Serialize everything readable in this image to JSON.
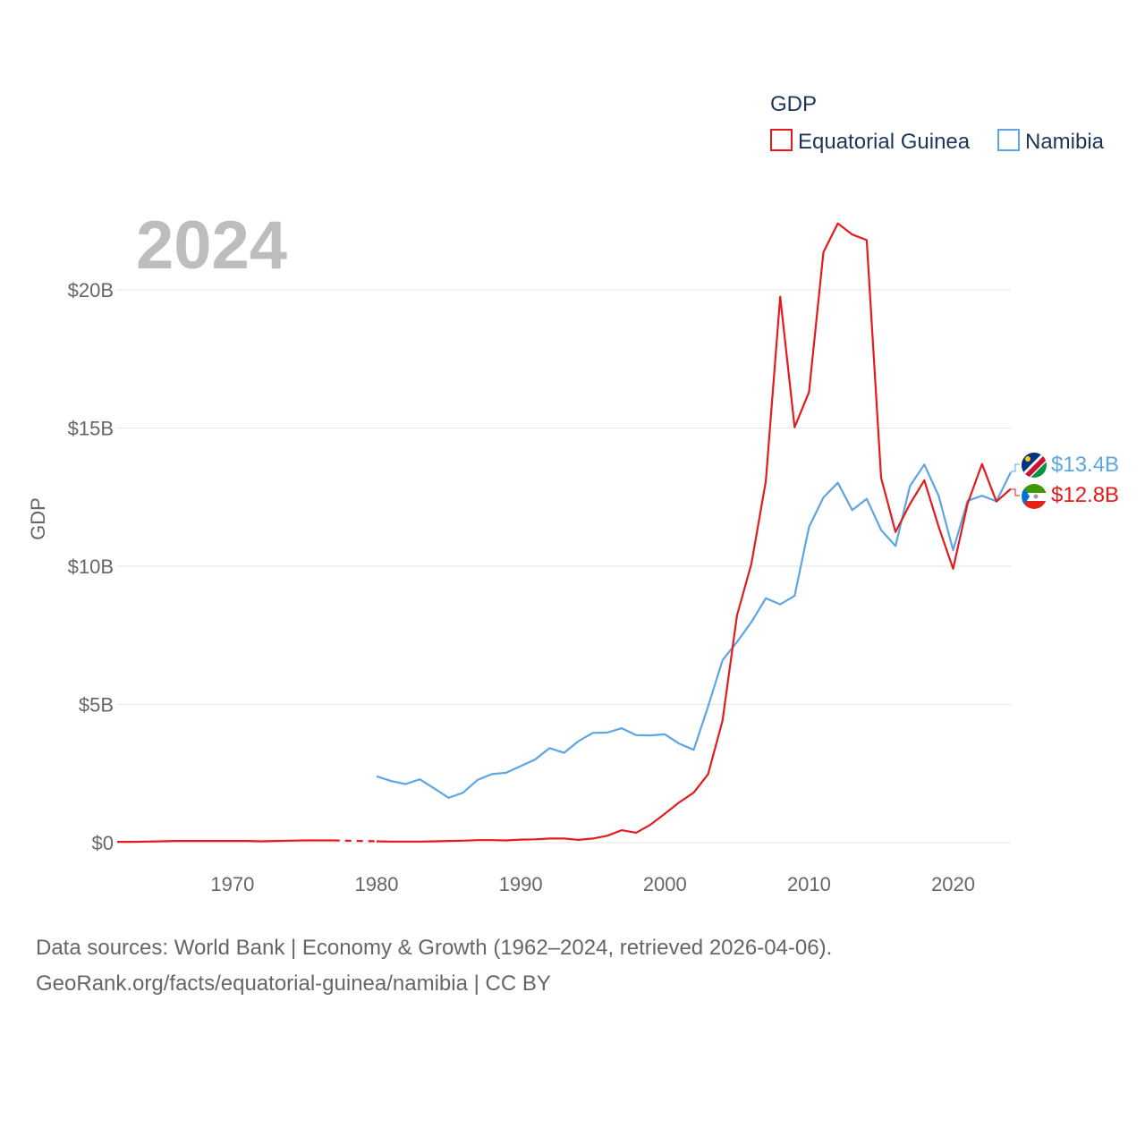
{
  "chart_data": {
    "type": "line",
    "title": "",
    "current_year": "2024",
    "ylabel": "GDP",
    "xlabel": "",
    "xlim": [
      1962,
      2024
    ],
    "ylim": [
      0,
      22500000000
    ],
    "x_ticks": [
      1970,
      1980,
      1990,
      2000,
      2010,
      2020
    ],
    "x_tick_labels": [
      "1970",
      "1980",
      "1990",
      "2000",
      "2010",
      "2020"
    ],
    "y_ticks": [
      0,
      5000000000,
      10000000000,
      15000000000,
      20000000000
    ],
    "y_tick_labels": [
      "$0",
      "$5B",
      "$10B",
      "$15B",
      "$20B"
    ],
    "legend": {
      "title": "GDP",
      "placement": "top-right",
      "entries": [
        "Equatorial Guinea",
        "Namibia"
      ]
    },
    "series": [
      {
        "name": "Equatorial Guinea",
        "color": "#e41a1c",
        "end_label": "$12.8B",
        "flag": "equatorial-guinea-flag-icon",
        "gap": [
          1977,
          1980
        ],
        "points": [
          [
            1962,
            0.03
          ],
          [
            1963,
            0.03
          ],
          [
            1964,
            0.04
          ],
          [
            1965,
            0.05
          ],
          [
            1966,
            0.06
          ],
          [
            1967,
            0.06
          ],
          [
            1968,
            0.06
          ],
          [
            1969,
            0.06
          ],
          [
            1970,
            0.06
          ],
          [
            1971,
            0.06
          ],
          [
            1972,
            0.05
          ],
          [
            1973,
            0.06
          ],
          [
            1974,
            0.07
          ],
          [
            1975,
            0.08
          ],
          [
            1976,
            0.08
          ],
          [
            1977,
            0.08
          ],
          [
            1980,
            0.05
          ],
          [
            1981,
            0.04
          ],
          [
            1982,
            0.04
          ],
          [
            1983,
            0.04
          ],
          [
            1984,
            0.05
          ],
          [
            1985,
            0.06
          ],
          [
            1986,
            0.07
          ],
          [
            1987,
            0.09
          ],
          [
            1988,
            0.09
          ],
          [
            1989,
            0.08
          ],
          [
            1990,
            0.11
          ],
          [
            1991,
            0.12
          ],
          [
            1992,
            0.15
          ],
          [
            1993,
            0.15
          ],
          [
            1994,
            0.1
          ],
          [
            1995,
            0.15
          ],
          [
            1996,
            0.25
          ],
          [
            1997,
            0.45
          ],
          [
            1998,
            0.36
          ],
          [
            1999,
            0.65
          ],
          [
            2000,
            1.05
          ],
          [
            2001,
            1.46
          ],
          [
            2002,
            1.81
          ],
          [
            2003,
            2.48
          ],
          [
            2004,
            4.41
          ],
          [
            2005,
            8.22
          ],
          [
            2006,
            10.09
          ],
          [
            2007,
            13.07
          ],
          [
            2008,
            19.75
          ],
          [
            2009,
            15.03
          ],
          [
            2010,
            16.3
          ],
          [
            2011,
            21.36
          ],
          [
            2012,
            22.4
          ],
          [
            2013,
            22.0
          ],
          [
            2014,
            21.8
          ],
          [
            2015,
            13.2
          ],
          [
            2016,
            11.24
          ],
          [
            2017,
            12.25
          ],
          [
            2018,
            13.11
          ],
          [
            2019,
            11.42
          ],
          [
            2020,
            9.91
          ],
          [
            2021,
            12.27
          ],
          [
            2022,
            13.7
          ],
          [
            2023,
            12.34
          ],
          [
            2024,
            12.8
          ]
        ]
      },
      {
        "name": "Namibia",
        "color": "#5da5e4",
        "end_label": "$13.4B",
        "flag": "namibia-flag-icon",
        "points": [
          [
            1980,
            2.4
          ],
          [
            1981,
            2.23
          ],
          [
            1982,
            2.12
          ],
          [
            1983,
            2.29
          ],
          [
            1984,
            1.96
          ],
          [
            1985,
            1.62
          ],
          [
            1986,
            1.81
          ],
          [
            1987,
            2.27
          ],
          [
            1988,
            2.48
          ],
          [
            1989,
            2.53
          ],
          [
            1990,
            2.77
          ],
          [
            1991,
            3.01
          ],
          [
            1992,
            3.42
          ],
          [
            1993,
            3.25
          ],
          [
            1994,
            3.67
          ],
          [
            1995,
            3.97
          ],
          [
            1996,
            3.98
          ],
          [
            1997,
            4.14
          ],
          [
            1998,
            3.89
          ],
          [
            1999,
            3.88
          ],
          [
            2000,
            3.92
          ],
          [
            2001,
            3.58
          ],
          [
            2002,
            3.36
          ],
          [
            2003,
            4.93
          ],
          [
            2004,
            6.6
          ],
          [
            2005,
            7.26
          ],
          [
            2006,
            7.98
          ],
          [
            2007,
            8.84
          ],
          [
            2008,
            8.62
          ],
          [
            2009,
            8.93
          ],
          [
            2010,
            11.42
          ],
          [
            2011,
            12.49
          ],
          [
            2012,
            13.02
          ],
          [
            2013,
            12.03
          ],
          [
            2014,
            12.44
          ],
          [
            2015,
            11.31
          ],
          [
            2016,
            10.73
          ],
          [
            2017,
            12.9
          ],
          [
            2018,
            13.68
          ],
          [
            2019,
            12.54
          ],
          [
            2020,
            10.58
          ],
          [
            2021,
            12.37
          ],
          [
            2022,
            12.55
          ],
          [
            2023,
            12.35
          ],
          [
            2024,
            13.4
          ]
        ]
      }
    ]
  },
  "footer": {
    "line1": "Data sources: World Bank | Economy & Growth (1962–2024, retrieved 2026-04-06).",
    "line2": "GeoRank.org/facts/equatorial-guinea/namibia | CC BY"
  }
}
